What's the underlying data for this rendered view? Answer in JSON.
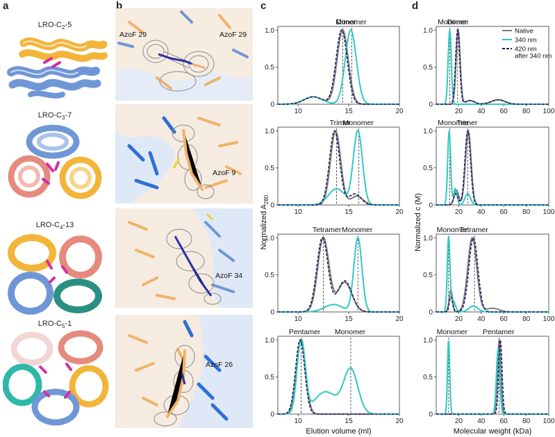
{
  "panels": {
    "a": "a",
    "b": "b",
    "c": "c",
    "d": "d"
  },
  "structures": [
    {
      "label": "LRO-C",
      "sub": "2",
      "suffix": "-5"
    },
    {
      "label": "LRO-C",
      "sub": "3",
      "suffix": "-7"
    },
    {
      "label": "LRO-C",
      "sub": "4",
      "suffix": "-13"
    },
    {
      "label": "LRO-C",
      "sub": "5",
      "suffix": "-1"
    }
  ],
  "crystal_labels": [
    "AzoF 29",
    "AzoF 29",
    "AzoF 9",
    "AzoF 34",
    "AzoF 26"
  ],
  "colors": {
    "native": "#7a7a7a",
    "nm340": "#2fc9c4",
    "nm420": "#1d1f66",
    "helixBlue": "#6f97d6",
    "helixOrange": "#f2b53a",
    "helixRed": "#e58a7c",
    "helixTeal": "#2a8f83",
    "magenta": "#d62ea3",
    "mesh": "#8a8a8a"
  },
  "legend": [
    "Native",
    "340 nm",
    "420 nm\nafter 340 nm"
  ],
  "chart_data": [
    {
      "panel": "c",
      "row": 1,
      "type": "line",
      "xlabel": "",
      "ylabel": "",
      "xlim": [
        8,
        20
      ],
      "ylim": [
        0,
        1.05
      ],
      "xticks": [
        10,
        15,
        20
      ],
      "yticks": [
        0,
        0.5,
        1.0
      ],
      "annotations": [
        {
          "text": "Dimer",
          "x": 14.4
        },
        {
          "text": "Monomer",
          "x": 15.3
        }
      ],
      "series": [
        {
          "name": "Native",
          "peaks": [
            [
              14.4,
              1.0,
              0.55
            ],
            [
              11.5,
              0.1,
              0.9
            ]
          ]
        },
        {
          "name": "340 nm",
          "peaks": [
            [
              15.2,
              1.0,
              0.55
            ],
            [
              11.5,
              0.1,
              0.9
            ]
          ]
        },
        {
          "name": "420 nm after 340 nm",
          "peaks": [
            [
              14.3,
              1.0,
              0.55
            ],
            [
              11.5,
              0.1,
              0.9
            ]
          ]
        }
      ]
    },
    {
      "panel": "c",
      "row": 2,
      "type": "line",
      "xlim": [
        8,
        20
      ],
      "ylim": [
        0,
        1.05
      ],
      "xticks": [
        10,
        15,
        20
      ],
      "yticks": [
        0,
        0.5,
        1.0
      ],
      "annotations": [
        {
          "text": "Trimer",
          "x": 13.8
        },
        {
          "text": "Monomer",
          "x": 16.0
        }
      ],
      "series": [
        {
          "name": "Native",
          "peaks": [
            [
              13.7,
              1.0,
              0.5
            ],
            [
              15.8,
              0.12,
              0.6
            ]
          ]
        },
        {
          "name": "340 nm",
          "peaks": [
            [
              15.9,
              1.0,
              0.45
            ],
            [
              13.8,
              0.22,
              0.8
            ]
          ]
        },
        {
          "name": "420 nm after 340 nm",
          "peaks": [
            [
              13.6,
              1.0,
              0.5
            ],
            [
              15.6,
              0.15,
              0.6
            ]
          ]
        }
      ]
    },
    {
      "panel": "c",
      "row": 3,
      "type": "line",
      "xlim": [
        8,
        20
      ],
      "ylim": [
        0,
        1.05
      ],
      "xticks": [
        10,
        15,
        20
      ],
      "yticks": [
        0,
        0.5,
        1.0
      ],
      "annotations": [
        {
          "text": "Tetramer",
          "x": 12.5
        },
        {
          "text": "Monomer",
          "x": 15.9
        }
      ],
      "series": [
        {
          "name": "Native",
          "peaks": [
            [
              12.5,
              1.0,
              0.55
            ],
            [
              14.6,
              0.4,
              0.7
            ]
          ]
        },
        {
          "name": "340 nm",
          "peaks": [
            [
              15.9,
              1.0,
              0.4
            ],
            [
              13.5,
              0.1,
              0.9
            ]
          ]
        },
        {
          "name": "420 nm after 340 nm",
          "peaks": [
            [
              12.4,
              1.0,
              0.55
            ],
            [
              14.6,
              0.42,
              0.7
            ]
          ]
        }
      ]
    },
    {
      "panel": "c",
      "row": 4,
      "type": "line",
      "xlim": [
        8,
        20
      ],
      "ylim": [
        0,
        1.05
      ],
      "xticks": [
        10,
        15,
        20
      ],
      "yticks": [
        0,
        0.5,
        1.0
      ],
      "xlabel": "Elution volume (ml)",
      "annotations": [
        {
          "text": "Pentamer",
          "x": 10.3
        },
        {
          "text": "Monomer",
          "x": 15.2
        }
      ],
      "series": [
        {
          "name": "Native",
          "peaks": [
            [
              10.3,
              1.0,
              0.45
            ]
          ]
        },
        {
          "name": "340 nm",
          "peaks": [
            [
              10.3,
              1.0,
              0.4
            ],
            [
              15.2,
              0.6,
              0.7
            ],
            [
              12.7,
              0.3,
              1.1
            ]
          ]
        },
        {
          "name": "420 nm after 340 nm",
          "peaks": [
            [
              10.2,
              1.0,
              0.45
            ]
          ]
        }
      ]
    },
    {
      "panel": "d",
      "row": 1,
      "type": "line",
      "xlim": [
        0,
        100
      ],
      "ylim": [
        0,
        1.05
      ],
      "xticks": [
        20,
        40,
        60,
        80,
        100
      ],
      "yticks": [
        0,
        0.5,
        1.0
      ],
      "annotations": [
        {
          "text": "Monomer",
          "x": 12
        },
        {
          "text": "Dimer",
          "x": 19
        }
      ],
      "series": [
        {
          "name": "Native",
          "peaks": [
            [
              19.5,
              1.0,
              1.8
            ],
            [
              30,
              0.05,
              4
            ],
            [
              55,
              0.06,
              6
            ]
          ]
        },
        {
          "name": "340 nm",
          "peaks": [
            [
              12,
              1.0,
              1.4
            ]
          ]
        },
        {
          "name": "420 nm after 340 nm",
          "peaks": [
            [
              19,
              1.0,
              1.8
            ],
            [
              30,
              0.05,
              4
            ],
            [
              55,
              0.06,
              6
            ]
          ]
        }
      ]
    },
    {
      "panel": "d",
      "row": 2,
      "type": "line",
      "xlim": [
        0,
        100
      ],
      "ylim": [
        0,
        1.05
      ],
      "xticks": [
        20,
        40,
        60,
        80,
        100
      ],
      "yticks": [
        0,
        0.5,
        1.0
      ],
      "annotations": [
        {
          "text": "Monomer",
          "x": 12
        },
        {
          "text": "Trimer",
          "x": 28
        }
      ],
      "series": [
        {
          "name": "Native",
          "peaks": [
            [
              28.5,
              1.0,
              2.5
            ],
            [
              18,
              0.2,
              2
            ]
          ]
        },
        {
          "name": "340 nm",
          "peaks": [
            [
              11.5,
              1.0,
              1.3
            ],
            [
              17,
              0.22,
              1.5
            ],
            [
              28,
              0.15,
              2.5
            ]
          ]
        },
        {
          "name": "420 nm after 340 nm",
          "peaks": [
            [
              28,
              1.0,
              2.5
            ],
            [
              17.5,
              0.15,
              2
            ]
          ]
        }
      ]
    },
    {
      "panel": "d",
      "row": 3,
      "type": "line",
      "xlim": [
        0,
        100
      ],
      "ylim": [
        0,
        1.05
      ],
      "xticks": [
        20,
        40,
        60,
        80,
        100
      ],
      "yticks": [
        0,
        0.5,
        1.0
      ],
      "annotations": [
        {
          "text": "Monomer",
          "x": 11
        },
        {
          "text": "Tetramer",
          "x": 34
        }
      ],
      "series": [
        {
          "name": "Native",
          "peaks": [
            [
              32,
              1.0,
              4
            ],
            [
              13,
              0.3,
              1.5
            ],
            [
              50,
              0.05,
              6
            ]
          ]
        },
        {
          "name": "340 nm",
          "peaks": [
            [
              11,
              1.0,
              1.2
            ],
            [
              15,
              0.15,
              2
            ],
            [
              33,
              0.08,
              4
            ]
          ]
        },
        {
          "name": "420 nm after 340 nm",
          "peaks": [
            [
              33,
              1.0,
              4
            ],
            [
              13,
              0.2,
              1.5
            ]
          ]
        }
      ]
    },
    {
      "panel": "d",
      "row": 4,
      "type": "line",
      "xlim": [
        0,
        100
      ],
      "ylim": [
        0,
        1.05
      ],
      "xticks": [
        20,
        40,
        60,
        80,
        100
      ],
      "yticks": [
        0,
        0.5,
        1.0
      ],
      "xlabel": "Molecular weight (kDa)",
      "annotations": [
        {
          "text": "Monomer",
          "x": 11
        },
        {
          "text": "Pentamer",
          "x": 56
        }
      ],
      "series": [
        {
          "name": "Native",
          "peaks": [
            [
              56,
              1.0,
              1.5
            ]
          ]
        },
        {
          "name": "340 nm",
          "peaks": [
            [
              11,
              1.0,
              1.0
            ],
            [
              55,
              0.88,
              1.5
            ]
          ]
        },
        {
          "name": "420 nm after 340 nm",
          "peaks": [
            [
              57,
              1.0,
              1.5
            ]
          ]
        }
      ]
    }
  ],
  "axis_labels": {
    "c_y": "Normalized A",
    "c_y_sub": "280",
    "d_y": "Normalized c (M)",
    "c_x": "Elution volume (ml)",
    "d_x": "Molecular weight (kDa)"
  }
}
